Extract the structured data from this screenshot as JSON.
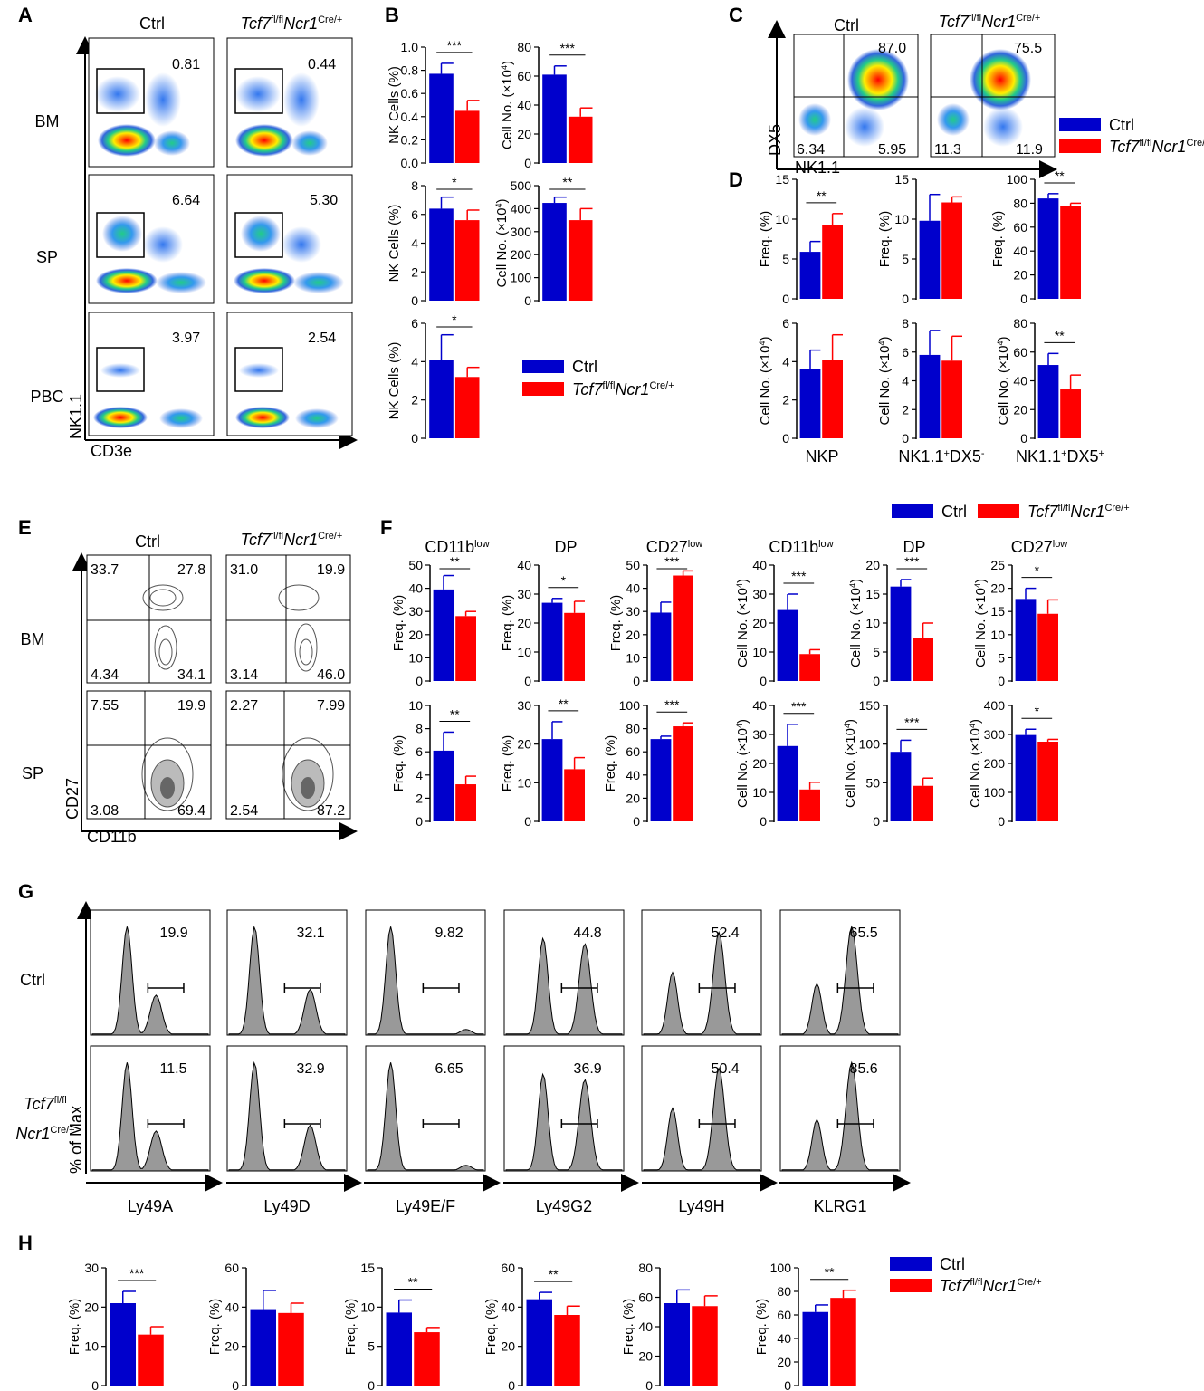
{
  "colors": {
    "ctrl": "#0000cc",
    "ko": "#ff0000",
    "hist": "#999999"
  },
  "labels": {
    "A": "A",
    "B": "B",
    "C": "C",
    "D": "D",
    "E": "E",
    "F": "F",
    "G": "G",
    "H": "H"
  },
  "legend": {
    "ctrl": "Ctrl",
    "ko_gene": "Tcf7",
    "ko_gene_sup": "fl/fl",
    "ko_cre": "Ncr1",
    "ko_cre_sup": "Cre/+"
  },
  "common": {
    "ctrl": "Ctrl",
    "bm": "BM",
    "sp": "SP",
    "pbc": "PBC"
  },
  "panelA": {
    "xaxis": "CD3e",
    "yaxis": "NK1.1",
    "rows": [
      {
        "tissue": "BM",
        "ctrl": "0.81",
        "ko": "0.44"
      },
      {
        "tissue": "SP",
        "ctrl": "6.64",
        "ko": "5.30"
      },
      {
        "tissue": "PBC",
        "ctrl": "3.97",
        "ko": "2.54"
      }
    ]
  },
  "panelC": {
    "xaxis": "NK1.1",
    "yaxis": "DX5",
    "ctrl": {
      "ur": "87.0",
      "ll": "6.34",
      "lr": "5.95"
    },
    "ko": {
      "ur": "75.5",
      "ll": "11.3",
      "lr": "11.9"
    }
  },
  "panelE": {
    "xaxis": "CD11b",
    "yaxis": "CD27",
    "rows": [
      {
        "tissue": "BM",
        "ctrl": [
          "33.7",
          "27.8",
          "4.34",
          "34.1"
        ],
        "ko": [
          "31.0",
          "19.9",
          "3.14",
          "46.0"
        ]
      },
      {
        "tissue": "SP",
        "ctrl": [
          "7.55",
          "19.9",
          "3.08",
          "69.4"
        ],
        "ko": [
          "2.27",
          "7.99",
          "2.54",
          "87.2"
        ]
      }
    ]
  },
  "panelG": {
    "yaxis": "% of Max",
    "row_labels": {
      "ctrl": "Ctrl",
      "ko_gene": "Tcf7",
      "ko_gene_sup": "fl/fl",
      "ko_cre": "Ncr1",
      "ko_cre_sup": "Cre/+"
    },
    "markers": [
      "Ly49A",
      "Ly49D",
      "Ly49E/F",
      "Ly49G2",
      "Ly49H",
      "KLRG1"
    ],
    "ctrl": [
      "19.9",
      "32.1",
      "9.82",
      "44.8",
      "52.4",
      "65.5"
    ],
    "ko": [
      "11.5",
      "32.9",
      "6.65",
      "36.9",
      "50.4",
      "85.6"
    ]
  },
  "chart_data": [
    {
      "panel": "B",
      "type": "bar",
      "ylabel": "NK Cells (%)",
      "ylim": [
        0,
        1.0
      ],
      "ticks": [
        "0.0",
        "0.2",
        "0.4",
        "0.6",
        "0.8",
        "1.0"
      ],
      "series": [
        {
          "name": "Ctrl",
          "values": [
            0.77
          ],
          "err": [
            0.09
          ]
        },
        {
          "name": "Tcf7fl/fl Ncr1Cre/+",
          "values": [
            0.45
          ],
          "err": [
            0.09
          ]
        }
      ],
      "sig": "***"
    },
    {
      "panel": "B",
      "type": "bar",
      "ylabel": "Cell No. (×10⁴)",
      "ylim": [
        0,
        80
      ],
      "ticks": [
        "0",
        "20",
        "40",
        "60",
        "80"
      ],
      "series": [
        {
          "name": "Ctrl",
          "values": [
            61
          ],
          "err": [
            6
          ]
        },
        {
          "name": "Tcf7fl/fl Ncr1Cre/+",
          "values": [
            32
          ],
          "err": [
            6
          ]
        }
      ],
      "sig": "***"
    },
    {
      "panel": "B",
      "type": "bar",
      "ylabel": "NK Cells (%)",
      "ylim": [
        0,
        8
      ],
      "ticks": [
        "0",
        "2",
        "4",
        "6",
        "8"
      ],
      "series": [
        {
          "name": "Ctrl",
          "values": [
            6.4
          ],
          "err": [
            0.8
          ]
        },
        {
          "name": "Tcf7fl/fl Ncr1Cre/+",
          "values": [
            5.6
          ],
          "err": [
            0.7
          ]
        }
      ],
      "sig": "*"
    },
    {
      "panel": "B",
      "type": "bar",
      "ylabel": "Cell No. (×10⁴)",
      "ylim": [
        0,
        500
      ],
      "ticks": [
        "0",
        "100",
        "200",
        "300",
        "400",
        "500"
      ],
      "series": [
        {
          "name": "Ctrl",
          "values": [
            425
          ],
          "err": [
            25
          ]
        },
        {
          "name": "Tcf7fl/fl Ncr1Cre/+",
          "values": [
            350
          ],
          "err": [
            50
          ]
        }
      ],
      "sig": "**"
    },
    {
      "panel": "B",
      "type": "bar",
      "ylabel": "NK Cells (%)",
      "ylim": [
        0,
        6
      ],
      "ticks": [
        "0",
        "2",
        "4",
        "6"
      ],
      "series": [
        {
          "name": "Ctrl",
          "values": [
            4.1
          ],
          "err": [
            1.3
          ]
        },
        {
          "name": "Tcf7fl/fl Ncr1Cre/+",
          "values": [
            3.2
          ],
          "err": [
            0.5
          ]
        }
      ],
      "sig": "*"
    },
    {
      "panel": "D",
      "type": "bar",
      "category": "NKP",
      "ylabel": "Freq. (%)",
      "ylim": [
        0,
        15
      ],
      "ticks": [
        "0",
        "5",
        "10",
        "15"
      ],
      "series": [
        {
          "name": "Ctrl",
          "values": [
            5.9
          ],
          "err": [
            1.3
          ]
        },
        {
          "name": "Tcf7fl/fl Ncr1Cre/+",
          "values": [
            9.3
          ],
          "err": [
            1.4
          ]
        }
      ],
      "sig": "**"
    },
    {
      "panel": "D",
      "type": "bar",
      "category": "NK1.1+DX5-",
      "ylabel": "Freq. (%)",
      "ylim": [
        0,
        15
      ],
      "ticks": [
        "0",
        "5",
        "10",
        "15"
      ],
      "series": [
        {
          "name": "Ctrl",
          "values": [
            9.8
          ],
          "err": [
            3.3
          ]
        },
        {
          "name": "Tcf7fl/fl Ncr1Cre/+",
          "values": [
            12.1
          ],
          "err": [
            0.7
          ]
        }
      ],
      "sig": ""
    },
    {
      "panel": "D",
      "type": "bar",
      "category": "NK1.1+DX5+",
      "ylabel": "Freq. (%)",
      "ylim": [
        0,
        100
      ],
      "ticks": [
        "0",
        "20",
        "40",
        "60",
        "80",
        "100"
      ],
      "series": [
        {
          "name": "Ctrl",
          "values": [
            84
          ],
          "err": [
            4
          ]
        },
        {
          "name": "Tcf7fl/fl Ncr1Cre/+",
          "values": [
            78
          ],
          "err": [
            2
          ]
        }
      ],
      "sig": "**"
    },
    {
      "panel": "D",
      "type": "bar",
      "category": "NKP",
      "ylabel": "Cell No. (×10⁴)",
      "ylim": [
        0,
        6
      ],
      "ticks": [
        "0",
        "2",
        "4",
        "6"
      ],
      "series": [
        {
          "name": "Ctrl",
          "values": [
            3.6
          ],
          "err": [
            1.0
          ]
        },
        {
          "name": "Tcf7fl/fl Ncr1Cre/+",
          "values": [
            4.1
          ],
          "err": [
            1.3
          ]
        }
      ],
      "sig": ""
    },
    {
      "panel": "D",
      "type": "bar",
      "category": "NK1.1+DX5-",
      "ylabel": "Cell No. (×10⁴)",
      "ylim": [
        0,
        8
      ],
      "ticks": [
        "0",
        "2",
        "4",
        "6",
        "8"
      ],
      "series": [
        {
          "name": "Ctrl",
          "values": [
            5.8
          ],
          "err": [
            1.7
          ]
        },
        {
          "name": "Tcf7fl/fl Ncr1Cre/+",
          "values": [
            5.4
          ],
          "err": [
            1.7
          ]
        }
      ],
      "sig": ""
    },
    {
      "panel": "D",
      "type": "bar",
      "category": "NK1.1+DX5+",
      "ylabel": "Cell No. (×10⁴)",
      "ylim": [
        0,
        80
      ],
      "ticks": [
        "0",
        "20",
        "40",
        "60",
        "80"
      ],
      "series": [
        {
          "name": "Ctrl",
          "values": [
            51
          ],
          "err": [
            8
          ]
        },
        {
          "name": "Tcf7fl/fl Ncr1Cre/+",
          "values": [
            34
          ],
          "err": [
            10
          ]
        }
      ],
      "sig": "**"
    },
    {
      "panel": "F",
      "type": "bar",
      "title": "CD11b",
      "title_sup": "low",
      "ylabel": "Freq. (%)",
      "ylim": [
        0,
        50
      ],
      "ticks": [
        "0",
        "10",
        "20",
        "30",
        "40",
        "50"
      ],
      "series": [
        {
          "name": "Ctrl",
          "values": [
            39.5
          ],
          "err": [
            6
          ]
        },
        {
          "name": "Tcf7fl/fl Ncr1Cre/+",
          "values": [
            28
          ],
          "err": [
            2
          ]
        }
      ],
      "sig": "**"
    },
    {
      "panel": "F",
      "type": "bar",
      "title": "DP",
      "title_sup": "",
      "ylabel": "Freq. (%)",
      "ylim": [
        0,
        40
      ],
      "ticks": [
        "0",
        "10",
        "20",
        "30",
        "40"
      ],
      "series": [
        {
          "name": "Ctrl",
          "values": [
            27
          ],
          "err": [
            1.5
          ]
        },
        {
          "name": "Tcf7fl/fl Ncr1Cre/+",
          "values": [
            23.5
          ],
          "err": [
            4
          ]
        }
      ],
      "sig": "*"
    },
    {
      "panel": "F",
      "type": "bar",
      "title": "CD27",
      "title_sup": "low",
      "ylabel": "Freq. (%)",
      "ylim": [
        0,
        50
      ],
      "ticks": [
        "0",
        "10",
        "20",
        "30",
        "40",
        "50"
      ],
      "series": [
        {
          "name": "Ctrl",
          "values": [
            29.5
          ],
          "err": [
            4.5
          ]
        },
        {
          "name": "Tcf7fl/fl Ncr1Cre/+",
          "values": [
            45.5
          ],
          "err": [
            2
          ]
        }
      ],
      "sig": "***"
    },
    {
      "panel": "F",
      "type": "bar",
      "title": "CD11b",
      "title_sup": "low",
      "ylabel": "Cell No. (×10⁴)",
      "ylim": [
        0,
        40
      ],
      "ticks": [
        "0",
        "10",
        "20",
        "30",
        "40"
      ],
      "series": [
        {
          "name": "Ctrl",
          "values": [
            24.5
          ],
          "err": [
            5.5
          ]
        },
        {
          "name": "Tcf7fl/fl Ncr1Cre/+",
          "values": [
            9.3
          ],
          "err": [
            1.5
          ]
        }
      ],
      "sig": "***"
    },
    {
      "panel": "F",
      "type": "bar",
      "title": "DP",
      "title_sup": "",
      "ylabel": "Cell No. (×10⁴)",
      "ylim": [
        0,
        20
      ],
      "ticks": [
        "0",
        "5",
        "10",
        "15",
        "20"
      ],
      "series": [
        {
          "name": "Ctrl",
          "values": [
            16.3
          ],
          "err": [
            1.2
          ]
        },
        {
          "name": "Tcf7fl/fl Ncr1Cre/+",
          "values": [
            7.5
          ],
          "err": [
            2.5
          ]
        }
      ],
      "sig": "***"
    },
    {
      "panel": "F",
      "type": "bar",
      "title": "CD27",
      "title_sup": "low",
      "ylabel": "Cell No. (×10⁴)",
      "ylim": [
        0,
        25
      ],
      "ticks": [
        "0",
        "5",
        "10",
        "15",
        "20",
        "25"
      ],
      "series": [
        {
          "name": "Ctrl",
          "values": [
            17.7
          ],
          "err": [
            2.3
          ]
        },
        {
          "name": "Tcf7fl/fl Ncr1Cre/+",
          "values": [
            14.5
          ],
          "err": [
            3
          ]
        }
      ],
      "sig": "*"
    },
    {
      "panel": "F",
      "type": "bar",
      "ylabel": "Freq. (%)",
      "ylim": [
        0,
        10
      ],
      "ticks": [
        "0",
        "2",
        "4",
        "6",
        "8",
        "10"
      ],
      "series": [
        {
          "name": "Ctrl",
          "values": [
            6.1
          ],
          "err": [
            1.6
          ]
        },
        {
          "name": "Tcf7fl/fl Ncr1Cre/+",
          "values": [
            3.2
          ],
          "err": [
            0.7
          ]
        }
      ],
      "sig": "**"
    },
    {
      "panel": "F",
      "type": "bar",
      "ylabel": "Freq. (%)",
      "ylim": [
        0,
        30
      ],
      "ticks": [
        "0",
        "10",
        "20",
        "30"
      ],
      "series": [
        {
          "name": "Ctrl",
          "values": [
            21.3
          ],
          "err": [
            4.5
          ]
        },
        {
          "name": "Tcf7fl/fl Ncr1Cre/+",
          "values": [
            13.5
          ],
          "err": [
            3
          ]
        }
      ],
      "sig": "**"
    },
    {
      "panel": "F",
      "type": "bar",
      "ylabel": "Freq. (%)",
      "ylim": [
        0,
        100
      ],
      "ticks": [
        "0",
        "20",
        "40",
        "60",
        "80",
        "100"
      ],
      "series": [
        {
          "name": "Ctrl",
          "values": [
            71
          ],
          "err": [
            2.5
          ]
        },
        {
          "name": "Tcf7fl/fl Ncr1Cre/+",
          "values": [
            82
          ],
          "err": [
            3
          ]
        }
      ],
      "sig": "***"
    },
    {
      "panel": "F",
      "type": "bar",
      "ylabel": "Cell No. (×10⁴)",
      "ylim": [
        0,
        40
      ],
      "ticks": [
        "0",
        "10",
        "20",
        "30",
        "40"
      ],
      "series": [
        {
          "name": "Ctrl",
          "values": [
            26
          ],
          "err": [
            7.5
          ]
        },
        {
          "name": "Tcf7fl/fl Ncr1Cre/+",
          "values": [
            11
          ],
          "err": [
            2.5
          ]
        }
      ],
      "sig": "***"
    },
    {
      "panel": "F",
      "type": "bar",
      "ylabel": "Cell No. (×10⁴)",
      "ylim": [
        0,
        150
      ],
      "ticks": [
        "0",
        "50",
        "100",
        "150"
      ],
      "series": [
        {
          "name": "Ctrl",
          "values": [
            90
          ],
          "err": [
            15
          ]
        },
        {
          "name": "Tcf7fl/fl Ncr1Cre/+",
          "values": [
            46
          ],
          "err": [
            10
          ]
        }
      ],
      "sig": "***"
    },
    {
      "panel": "F",
      "type": "bar",
      "ylabel": "Cell No. (×10⁴)",
      "ylim": [
        0,
        400
      ],
      "ticks": [
        "0",
        "100",
        "200",
        "300",
        "400"
      ],
      "series": [
        {
          "name": "Ctrl",
          "values": [
            298
          ],
          "err": [
            20
          ]
        },
        {
          "name": "Tcf7fl/fl Ncr1Cre/+",
          "values": [
            275
          ],
          "err": [
            8
          ]
        }
      ],
      "sig": "*"
    },
    {
      "panel": "H",
      "type": "bar",
      "category": "Ly49A",
      "ylabel": "Freq. (%)",
      "ylim": [
        0,
        30
      ],
      "ticks": [
        "0",
        "10",
        "20",
        "30"
      ],
      "series": [
        {
          "name": "Ctrl",
          "values": [
            21
          ],
          "err": [
            3
          ]
        },
        {
          "name": "Tcf7fl/fl Ncr1Cre/+",
          "values": [
            13
          ],
          "err": [
            2
          ]
        }
      ],
      "sig": "***"
    },
    {
      "panel": "H",
      "type": "bar",
      "category": "Ly49D",
      "ylabel": "Freq. (%)",
      "ylim": [
        0,
        60
      ],
      "ticks": [
        "0",
        "20",
        "40",
        "60"
      ],
      "series": [
        {
          "name": "Ctrl",
          "values": [
            38.5
          ],
          "err": [
            10
          ]
        },
        {
          "name": "Tcf7fl/fl Ncr1Cre/+",
          "values": [
            37
          ],
          "err": [
            5
          ]
        }
      ],
      "sig": ""
    },
    {
      "panel": "H",
      "type": "bar",
      "category": "Ly49E/F",
      "ylabel": "Freq. (%)",
      "ylim": [
        0,
        15
      ],
      "ticks": [
        "0",
        "5",
        "10",
        "15"
      ],
      "series": [
        {
          "name": "Ctrl",
          "values": [
            9.3
          ],
          "err": [
            1.6
          ]
        },
        {
          "name": "Tcf7fl/fl Ncr1Cre/+",
          "values": [
            6.8
          ],
          "err": [
            0.6
          ]
        }
      ],
      "sig": "**"
    },
    {
      "panel": "H",
      "type": "bar",
      "category": "Ly49G2",
      "ylabel": "Freq. (%)",
      "ylim": [
        0,
        60
      ],
      "ticks": [
        "0",
        "20",
        "40",
        "60"
      ],
      "series": [
        {
          "name": "Ctrl",
          "values": [
            44
          ],
          "err": [
            3.5
          ]
        },
        {
          "name": "Tcf7fl/fl Ncr1Cre/+",
          "values": [
            36
          ],
          "err": [
            4.5
          ]
        }
      ],
      "sig": "**"
    },
    {
      "panel": "H",
      "type": "bar",
      "category": "Ly49H",
      "ylabel": "Freq. (%)",
      "ylim": [
        0,
        80
      ],
      "ticks": [
        "0",
        "20",
        "40",
        "60",
        "80"
      ],
      "series": [
        {
          "name": "Ctrl",
          "values": [
            56
          ],
          "err": [
            9
          ]
        },
        {
          "name": "Tcf7fl/fl Ncr1Cre/+",
          "values": [
            54
          ],
          "err": [
            7
          ]
        }
      ],
      "sig": ""
    },
    {
      "panel": "H",
      "type": "bar",
      "category": "KLRG1",
      "ylabel": "Freq. (%)",
      "ylim": [
        0,
        100
      ],
      "ticks": [
        "0",
        "20",
        "40",
        "60",
        "80",
        "100"
      ],
      "series": [
        {
          "name": "Ctrl",
          "values": [
            62.5
          ],
          "err": [
            6
          ]
        },
        {
          "name": "Tcf7fl/fl Ncr1Cre/+",
          "values": [
            74.5
          ],
          "err": [
            6.5
          ]
        }
      ],
      "sig": "**"
    }
  ]
}
